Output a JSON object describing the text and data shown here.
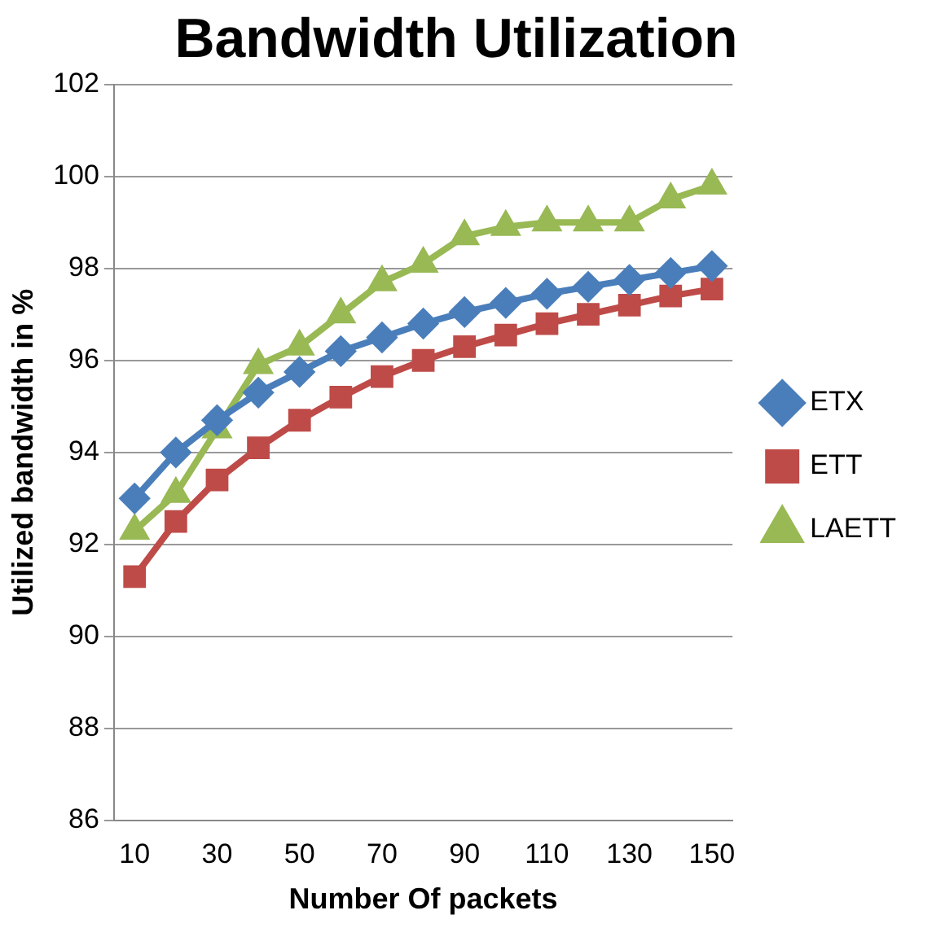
{
  "chart_data": {
    "type": "line",
    "title": "Bandwidth Utilization",
    "xlabel": "Number Of packets",
    "ylabel": "Utilized bandwidth in %",
    "categories": [
      "10",
      null,
      "30",
      null,
      "50",
      null,
      "70",
      null,
      "90",
      null,
      "110",
      null,
      "130",
      null,
      "150"
    ],
    "series": [
      {
        "name": "ETX",
        "color": "#4a7ebb",
        "marker": "diamond",
        "values": [
          93.0,
          94.0,
          94.7,
          95.3,
          95.75,
          96.2,
          96.5,
          96.8,
          97.05,
          97.25,
          97.45,
          97.6,
          97.75,
          97.9,
          98.05
        ]
      },
      {
        "name": "ETT",
        "color": "#be4b48",
        "marker": "square",
        "values": [
          91.3,
          92.5,
          93.4,
          94.1,
          94.7,
          95.2,
          95.65,
          96.0,
          96.3,
          96.55,
          96.8,
          97.0,
          97.2,
          97.4,
          97.55
        ]
      },
      {
        "name": "LAETT",
        "color": "#98b954",
        "marker": "triangle",
        "values": [
          92.3,
          93.1,
          94.5,
          95.9,
          96.3,
          97.0,
          97.7,
          98.1,
          98.7,
          98.9,
          99.0,
          99.0,
          99.0,
          99.5,
          99.8
        ]
      }
    ],
    "ylim": [
      86,
      102
    ],
    "yticks": [
      86,
      88,
      90,
      92,
      94,
      96,
      98,
      100,
      102
    ],
    "grid": "y",
    "legend": "right",
    "line_style": "solid"
  }
}
